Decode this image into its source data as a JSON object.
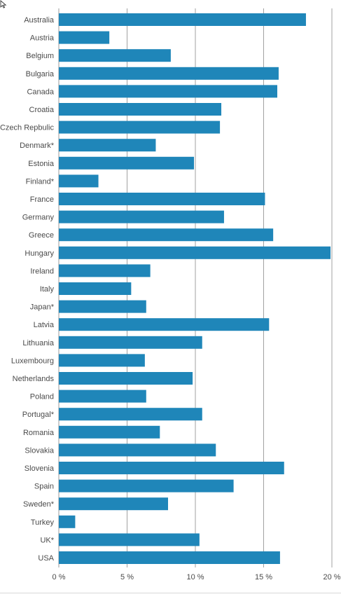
{
  "chart_data": {
    "type": "bar",
    "orientation": "horizontal",
    "categories": [
      "Australia",
      "Austria",
      "Belgium",
      "Bulgaria",
      "Canada",
      "Croatia",
      "Czech Repbulic",
      "Denmark*",
      "Estonia",
      "Finland*",
      "France",
      "Germany",
      "Greece",
      "Hungary",
      "Ireland",
      "Italy",
      "Japan*",
      "Latvia",
      "Lithuania",
      "Luxembourg",
      "Netherlands",
      "Poland",
      "Portugal*",
      "Romania",
      "Slovakia",
      "Slovenia",
      "Spain",
      "Sweden*",
      "Turkey",
      "UK*",
      "USA"
    ],
    "values": [
      18.1,
      3.7,
      8.2,
      16.1,
      16.0,
      11.9,
      11.8,
      7.1,
      9.9,
      2.9,
      15.1,
      12.1,
      15.7,
      19.9,
      6.7,
      5.3,
      6.4,
      15.4,
      10.5,
      6.3,
      9.8,
      6.4,
      10.5,
      7.4,
      11.5,
      16.5,
      12.8,
      8.0,
      1.2,
      10.3,
      16.2
    ],
    "xlim": [
      0,
      20
    ],
    "xticks": [
      0,
      5,
      10,
      15,
      20
    ],
    "xtick_labels": [
      "0 %",
      "5 %",
      "10 %",
      "15 %",
      "20 %"
    ],
    "grid": true,
    "colors": {
      "bar": "#1f86b9",
      "grid": "#8a8a8a",
      "label": "#4a4a4a"
    }
  }
}
